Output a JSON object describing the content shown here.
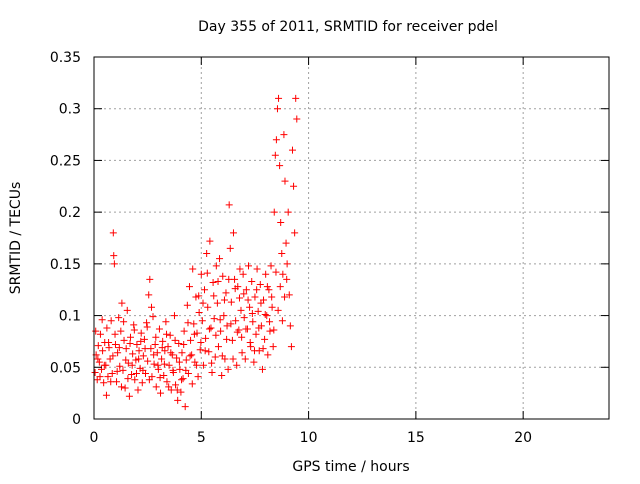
{
  "chart_data": {
    "type": "scatter",
    "title": "Day 355 of 2011, SRMTID for receiver pdel",
    "xlabel": "GPS time / hours",
    "ylabel": "SRMTID / TECUs",
    "xlim": [
      0,
      24
    ],
    "ylim": [
      0,
      0.35
    ],
    "xticks": [
      0,
      5,
      10,
      15,
      20
    ],
    "xtick_labels": [
      "0",
      "5",
      "10",
      "15",
      "20"
    ],
    "yticks": [
      0,
      0.05,
      0.1,
      0.15,
      0.2,
      0.25,
      0.3,
      0.35
    ],
    "ytick_labels": [
      "0",
      "0.05",
      "0.1",
      "0.15",
      "0.2",
      "0.25",
      "0.3",
      "0.35"
    ],
    "grid": true,
    "marker": "+",
    "color": "#ff0000",
    "series": [
      {
        "name": "SRMTID",
        "points": [
          [
            0.05,
            0.045
          ],
          [
            0.1,
            0.062
          ],
          [
            0.15,
            0.038
          ],
          [
            0.2,
            0.071
          ],
          [
            0.25,
            0.055
          ],
          [
            0.3,
            0.082
          ],
          [
            0.35,
            0.048
          ],
          [
            0.4,
            0.066
          ],
          [
            0.45,
            0.035
          ],
          [
            0.5,
            0.074
          ],
          [
            0.55,
            0.052
          ],
          [
            0.6,
            0.088
          ],
          [
            0.65,
            0.041
          ],
          [
            0.7,
            0.069
          ],
          [
            0.75,
            0.058
          ],
          [
            0.8,
            0.095
          ],
          [
            0.85,
            0.044
          ],
          [
            0.9,
            0.18
          ],
          [
            0.92,
            0.158
          ],
          [
            0.95,
            0.15
          ],
          [
            1.0,
            0.072
          ],
          [
            1.05,
            0.036
          ],
          [
            1.1,
            0.064
          ],
          [
            1.15,
            0.098
          ],
          [
            1.2,
            0.051
          ],
          [
            1.25,
            0.085
          ],
          [
            1.3,
            0.112
          ],
          [
            1.35,
            0.047
          ],
          [
            1.4,
            0.076
          ],
          [
            1.45,
            0.03
          ],
          [
            1.5,
            0.068
          ],
          [
            1.55,
            0.105
          ],
          [
            1.6,
            0.054
          ],
          [
            1.65,
            0.022
          ],
          [
            1.7,
            0.079
          ],
          [
            1.75,
            0.043
          ],
          [
            1.8,
            0.063
          ],
          [
            1.85,
            0.091
          ],
          [
            1.9,
            0.038
          ],
          [
            1.95,
            0.057
          ],
          [
            2.0,
            0.072
          ],
          [
            2.05,
            0.028
          ],
          [
            2.1,
            0.066
          ],
          [
            2.15,
            0.049
          ],
          [
            2.2,
            0.083
          ],
          [
            2.25,
            0.035
          ],
          [
            2.3,
            0.061
          ],
          [
            2.35,
            0.077
          ],
          [
            2.4,
            0.044
          ],
          [
            2.45,
            0.093
          ],
          [
            2.5,
            0.056
          ],
          [
            2.55,
            0.12
          ],
          [
            2.6,
            0.135
          ],
          [
            2.65,
            0.068
          ],
          [
            2.7,
            0.041
          ],
          [
            2.75,
            0.099
          ],
          [
            2.8,
            0.053
          ],
          [
            2.85,
            0.072
          ],
          [
            2.9,
            0.031
          ],
          [
            2.95,
            0.064
          ],
          [
            3.0,
            0.048
          ],
          [
            3.05,
            0.087
          ],
          [
            3.1,
            0.025
          ],
          [
            3.15,
            0.058
          ],
          [
            3.2,
            0.075
          ],
          [
            3.25,
            0.042
          ],
          [
            3.3,
            0.066
          ],
          [
            3.35,
            0.094
          ],
          [
            3.4,
            0.036
          ],
          [
            3.45,
            0.07
          ],
          [
            3.5,
            0.052
          ],
          [
            3.55,
            0.081
          ],
          [
            3.6,
            0.028
          ],
          [
            3.65,
            0.062
          ],
          [
            3.7,
            0.045
          ],
          [
            3.75,
            0.1
          ],
          [
            3.8,
            0.033
          ],
          [
            3.85,
            0.059
          ],
          [
            3.9,
            0.018
          ],
          [
            3.95,
            0.073
          ],
          [
            4.0,
            0.048
          ],
          [
            4.05,
            0.026
          ],
          [
            4.1,
            0.064
          ],
          [
            4.15,
            0.039
          ],
          [
            4.2,
            0.085
          ],
          [
            4.25,
            0.012
          ],
          [
            4.3,
            0.057
          ],
          [
            4.35,
            0.11
          ],
          [
            4.4,
            0.044
          ],
          [
            4.45,
            0.128
          ],
          [
            4.5,
            0.076
          ],
          [
            4.55,
            0.062
          ],
          [
            4.6,
            0.145
          ],
          [
            4.65,
            0.092
          ],
          [
            4.7,
            0.055
          ],
          [
            4.75,
            0.118
          ],
          [
            4.8,
            0.083
          ],
          [
            4.85,
            0.041
          ],
          [
            4.9,
            0.103
          ],
          [
            4.95,
            0.067
          ],
          [
            5.0,
            0.14
          ],
          [
            5.05,
            0.095
          ],
          [
            5.1,
            0.052
          ],
          [
            5.15,
            0.125
          ],
          [
            5.2,
            0.078
          ],
          [
            5.25,
            0.16
          ],
          [
            5.3,
            0.108
          ],
          [
            5.35,
            0.065
          ],
          [
            5.4,
            0.172
          ],
          [
            5.45,
            0.088
          ],
          [
            5.5,
            0.045
          ],
          [
            5.55,
            0.132
          ],
          [
            5.6,
            0.097
          ],
          [
            5.65,
            0.06
          ],
          [
            5.7,
            0.148
          ],
          [
            5.75,
            0.112
          ],
          [
            5.8,
            0.07
          ],
          [
            5.85,
            0.155
          ],
          [
            5.9,
            0.085
          ],
          [
            5.95,
            0.042
          ],
          [
            6.0,
            0.138
          ],
          [
            6.05,
            0.1
          ],
          [
            6.1,
            0.058
          ],
          [
            6.15,
            0.122
          ],
          [
            6.2,
            0.09
          ],
          [
            6.25,
            0.048
          ],
          [
            6.3,
            0.207
          ],
          [
            6.35,
            0.165
          ],
          [
            6.4,
            0.113
          ],
          [
            6.45,
            0.076
          ],
          [
            6.5,
            0.18
          ],
          [
            6.55,
            0.135
          ],
          [
            6.6,
            0.095
          ],
          [
            6.65,
            0.052
          ],
          [
            6.7,
            0.128
          ],
          [
            6.75,
            0.086
          ],
          [
            6.8,
            0.145
          ],
          [
            6.85,
            0.105
          ],
          [
            6.9,
            0.064
          ],
          [
            6.95,
            0.14
          ],
          [
            7.0,
            0.098
          ],
          [
            7.05,
            0.058
          ],
          [
            7.1,
            0.125
          ],
          [
            7.15,
            0.087
          ],
          [
            7.2,
            0.148
          ],
          [
            7.25,
            0.108
          ],
          [
            7.3,
            0.07
          ],
          [
            7.35,
            0.133
          ],
          [
            7.4,
            0.094
          ],
          [
            7.45,
            0.055
          ],
          [
            7.5,
            0.118
          ],
          [
            7.55,
            0.082
          ],
          [
            7.6,
            0.145
          ],
          [
            7.65,
            0.104
          ],
          [
            7.7,
            0.066
          ],
          [
            7.75,
            0.13
          ],
          [
            7.8,
            0.09
          ],
          [
            7.85,
            0.048
          ],
          [
            7.9,
            0.115
          ],
          [
            7.95,
            0.077
          ],
          [
            8.0,
            0.14
          ],
          [
            8.05,
            0.1
          ],
          [
            8.1,
            0.062
          ],
          [
            8.15,
            0.125
          ],
          [
            8.2,
            0.085
          ],
          [
            8.25,
            0.148
          ],
          [
            8.3,
            0.108
          ],
          [
            8.35,
            0.07
          ],
          [
            8.4,
            0.2
          ],
          [
            8.45,
            0.255
          ],
          [
            8.5,
            0.27
          ],
          [
            8.55,
            0.3
          ],
          [
            8.6,
            0.31
          ],
          [
            8.65,
            0.245
          ],
          [
            8.7,
            0.19
          ],
          [
            8.75,
            0.16
          ],
          [
            8.8,
            0.14
          ],
          [
            8.85,
            0.275
          ],
          [
            8.9,
            0.23
          ],
          [
            8.95,
            0.17
          ],
          [
            9.0,
            0.15
          ],
          [
            9.05,
            0.2
          ],
          [
            9.1,
            0.12
          ],
          [
            9.15,
            0.09
          ],
          [
            9.2,
            0.07
          ],
          [
            9.25,
            0.26
          ],
          [
            9.3,
            0.225
          ],
          [
            9.35,
            0.18
          ],
          [
            9.4,
            0.31
          ],
          [
            9.45,
            0.29
          ],
          [
            0.08,
            0.085
          ],
          [
            0.18,
            0.058
          ],
          [
            0.28,
            0.041
          ],
          [
            0.38,
            0.096
          ],
          [
            0.48,
            0.052
          ],
          [
            0.58,
            0.023
          ],
          [
            0.68,
            0.074
          ],
          [
            0.78,
            0.036
          ],
          [
            0.88,
            0.061
          ],
          [
            0.98,
            0.082
          ],
          [
            1.08,
            0.046
          ],
          [
            1.18,
            0.069
          ],
          [
            1.28,
            0.031
          ],
          [
            1.38,
            0.094
          ],
          [
            1.48,
            0.057
          ],
          [
            1.58,
            0.039
          ],
          [
            1.68,
            0.073
          ],
          [
            1.78,
            0.052
          ],
          [
            1.88,
            0.086
          ],
          [
            1.98,
            0.044
          ],
          [
            2.08,
            0.058
          ],
          [
            2.18,
            0.075
          ],
          [
            2.28,
            0.047
          ],
          [
            2.38,
            0.068
          ],
          [
            2.48,
            0.089
          ],
          [
            2.58,
            0.038
          ],
          [
            2.68,
            0.108
          ],
          [
            2.78,
            0.062
          ],
          [
            2.88,
            0.079
          ],
          [
            2.98,
            0.052
          ],
          [
            3.08,
            0.04
          ],
          [
            3.18,
            0.069
          ],
          [
            3.28,
            0.053
          ],
          [
            3.38,
            0.082
          ],
          [
            3.48,
            0.031
          ],
          [
            3.58,
            0.064
          ],
          [
            3.68,
            0.047
          ],
          [
            3.78,
            0.076
          ],
          [
            3.88,
            0.028
          ],
          [
            3.98,
            0.055
          ],
          [
            4.08,
            0.038
          ],
          [
            4.18,
            0.072
          ],
          [
            4.28,
            0.047
          ],
          [
            4.38,
            0.093
          ],
          [
            4.48,
            0.061
          ],
          [
            4.58,
            0.034
          ],
          [
            4.68,
            0.082
          ],
          [
            4.78,
            0.052
          ],
          [
            4.88,
            0.119
          ],
          [
            4.98,
            0.074
          ],
          [
            5.08,
            0.112
          ],
          [
            5.18,
            0.066
          ],
          [
            5.28,
            0.141
          ],
          [
            5.38,
            0.087
          ],
          [
            5.48,
            0.054
          ],
          [
            5.58,
            0.119
          ],
          [
            5.68,
            0.081
          ],
          [
            5.78,
            0.133
          ],
          [
            5.88,
            0.096
          ],
          [
            5.98,
            0.061
          ],
          [
            6.08,
            0.115
          ],
          [
            6.18,
            0.077
          ],
          [
            6.28,
            0.135
          ],
          [
            6.38,
            0.092
          ],
          [
            6.48,
            0.058
          ],
          [
            6.58,
            0.126
          ],
          [
            6.68,
            0.084
          ],
          [
            6.78,
            0.117
          ],
          [
            6.88,
            0.079
          ],
          [
            6.98,
            0.121
          ],
          [
            7.08,
            0.087
          ],
          [
            7.18,
            0.115
          ],
          [
            7.28,
            0.074
          ],
          [
            7.38,
            0.102
          ],
          [
            7.48,
            0.066
          ],
          [
            7.58,
            0.125
          ],
          [
            7.68,
            0.088
          ],
          [
            7.78,
            0.112
          ],
          [
            7.88,
            0.068
          ],
          [
            7.98,
            0.101
          ],
          [
            8.08,
            0.128
          ],
          [
            8.18,
            0.094
          ],
          [
            8.28,
            0.118
          ],
          [
            8.38,
            0.086
          ],
          [
            8.48,
            0.142
          ],
          [
            8.58,
            0.105
          ],
          [
            8.68,
            0.128
          ],
          [
            8.78,
            0.095
          ],
          [
            8.88,
            0.118
          ],
          [
            8.98,
            0.135
          ]
        ]
      }
    ]
  }
}
